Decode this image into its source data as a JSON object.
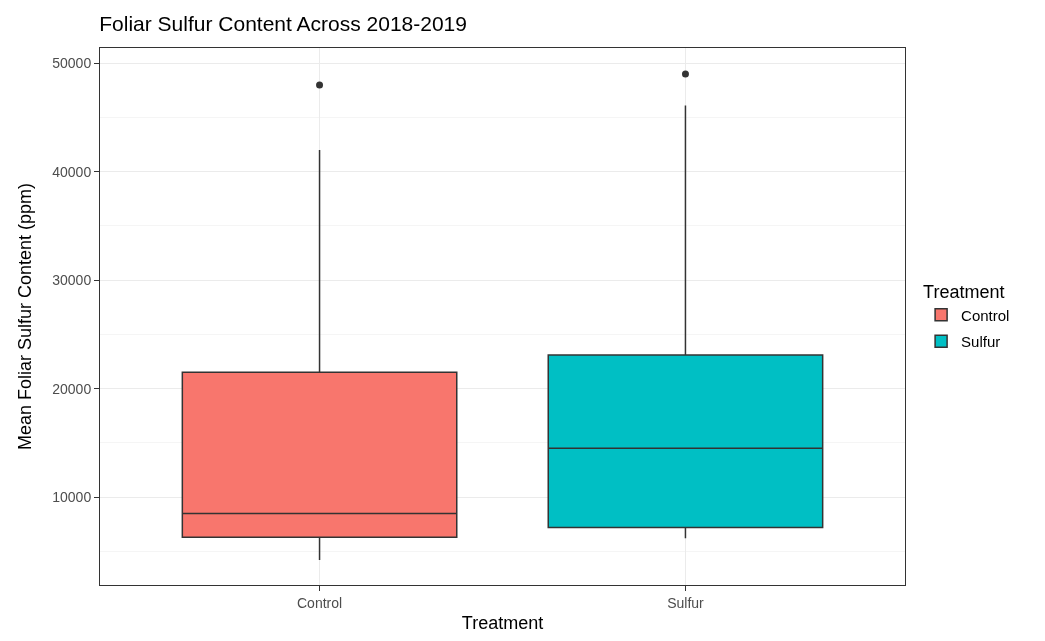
{
  "chart_data": {
    "type": "box",
    "title": "Foliar Sulfur Content Across 2018-2019",
    "xlabel": "Treatment",
    "ylabel": "Mean Foliar Sulfur Content (ppm)",
    "legend_title": "Treatment",
    "categories": [
      "Control",
      "Sulfur"
    ],
    "series": [
      {
        "name": "Control",
        "color": "#f8766d",
        "boxes": [
          {
            "low": 4200,
            "q1": 6300,
            "median": 8500,
            "q3": 21500,
            "high": 42000,
            "outliers": [
              48000
            ]
          },
          null
        ]
      },
      {
        "name": "Sulfur",
        "color": "#00bfc4",
        "boxes": [
          null,
          {
            "low": 6200,
            "q1": 7200,
            "median": 14500,
            "q3": 23100,
            "high": 46100,
            "outliers": [
              49000
            ]
          }
        ]
      }
    ],
    "ylim": [
      1900,
      51400
    ],
    "yticks": [
      10000,
      20000,
      30000,
      40000,
      50000
    ],
    "grid": true,
    "legend": "right"
  }
}
